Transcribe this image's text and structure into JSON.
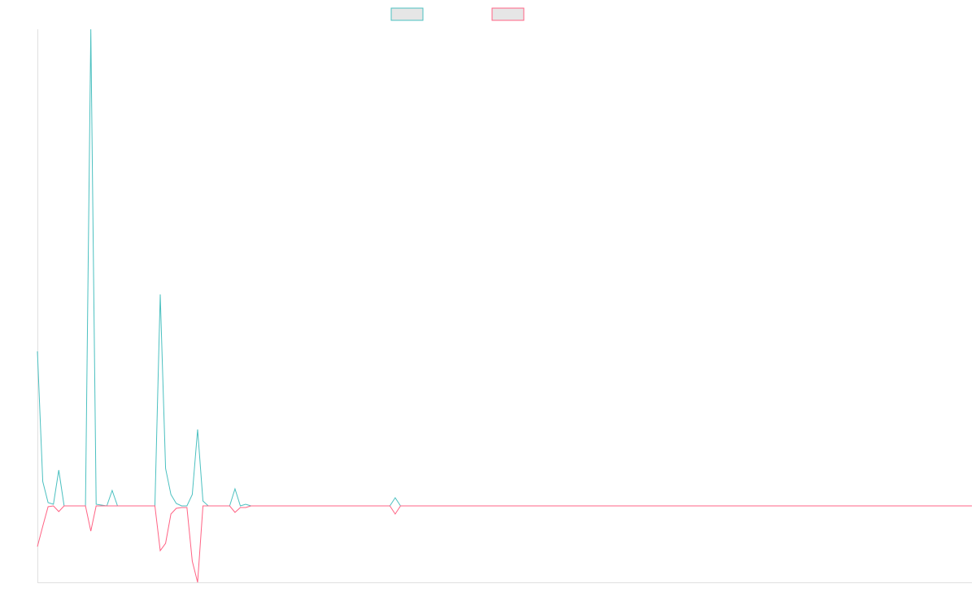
{
  "chart_data": {
    "type": "line",
    "ylim": [
      -94,
      586
    ],
    "series": [
      {
        "color": "#4bc0c0",
        "values": [
          190,
          30,
          4,
          2,
          44,
          0,
          0,
          0,
          0,
          0,
          586,
          2,
          1,
          0,
          19,
          0,
          0,
          0,
          0,
          0,
          0,
          0,
          0,
          260,
          46,
          14,
          3,
          0,
          0,
          14,
          94,
          6,
          0,
          0,
          0,
          0,
          0,
          21,
          0,
          2,
          0,
          0,
          0,
          0,
          0,
          0,
          0,
          0,
          0,
          0,
          0,
          0,
          0,
          0,
          0,
          0,
          0,
          0,
          0,
          0,
          0,
          0,
          0,
          0,
          0,
          0,
          0,
          10,
          0,
          0,
          0,
          0,
          0,
          0,
          0,
          0,
          0,
          0,
          0,
          0,
          0,
          0,
          0,
          0,
          0,
          0,
          0,
          0,
          0,
          0,
          0,
          0,
          0,
          0,
          0,
          0,
          0,
          0,
          0,
          0,
          0,
          0,
          0,
          0,
          0,
          0,
          0,
          0,
          0,
          0,
          0,
          0,
          0,
          0,
          0,
          0,
          0,
          0,
          0,
          0,
          0,
          0,
          0,
          0,
          0,
          0,
          0,
          0,
          0,
          0,
          0,
          0,
          0,
          0,
          0,
          0,
          0,
          0,
          0,
          0,
          0,
          0,
          0,
          0,
          0,
          0,
          0,
          0,
          0,
          0,
          0,
          0,
          0,
          0,
          0,
          0,
          0,
          0,
          0,
          0,
          0,
          0,
          0,
          0,
          0,
          0,
          0,
          0,
          0,
          0,
          0,
          0,
          0,
          0,
          0,
          0
        ]
      },
      {
        "color": "#ff6384",
        "values": [
          -50,
          -25,
          -1,
          0,
          -7,
          0,
          0,
          0,
          0,
          0,
          -31,
          0,
          0,
          0,
          0,
          0,
          0,
          0,
          0,
          0,
          0,
          0,
          0,
          -55,
          -46,
          -10,
          -3,
          -2,
          -2,
          -68,
          -94,
          0,
          0,
          0,
          0,
          0,
          0,
          -8,
          -2,
          -2,
          0,
          0,
          0,
          0,
          0,
          0,
          0,
          0,
          0,
          0,
          0,
          0,
          0,
          0,
          0,
          0,
          0,
          0,
          0,
          0,
          0,
          0,
          0,
          0,
          0,
          0,
          0,
          -10,
          0,
          0,
          0,
          0,
          0,
          0,
          0,
          0,
          0,
          0,
          0,
          0,
          0,
          0,
          0,
          0,
          0,
          0,
          0,
          0,
          0,
          0,
          0,
          0,
          0,
          0,
          0,
          0,
          0,
          0,
          0,
          0,
          0,
          0,
          0,
          0,
          0,
          0,
          0,
          0,
          0,
          0,
          0,
          0,
          0,
          0,
          0,
          0,
          0,
          0,
          0,
          0,
          0,
          0,
          0,
          0,
          0,
          0,
          0,
          0,
          0,
          0,
          0,
          0,
          0,
          0,
          0,
          0,
          0,
          0,
          0,
          0,
          0,
          0,
          0,
          0,
          0,
          0,
          0,
          0,
          0,
          0,
          0,
          0,
          0,
          0,
          0,
          0,
          0,
          0,
          0,
          0,
          0,
          0,
          0,
          0,
          0,
          0,
          0,
          0,
          0,
          0,
          0,
          0,
          0,
          0,
          0,
          0
        ]
      }
    ]
  }
}
